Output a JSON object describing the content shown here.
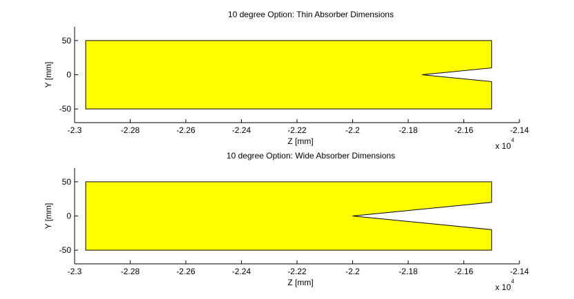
{
  "chart_data": [
    {
      "type": "area",
      "title": "10 degree Option: Thin Absorber Dimensions",
      "xlabel": "Z [mm]",
      "ylabel": "Y [mm]",
      "xlim": [
        -23000,
        -21400
      ],
      "ylim": [
        -70,
        70
      ],
      "x_ticks": [
        -23000,
        -22800,
        -22600,
        -22400,
        -22200,
        -22000,
        -21800,
        -21600,
        -21400
      ],
      "x_tick_labels": [
        "-2.3",
        "-2.28",
        "-2.26",
        "-2.24",
        "-2.22",
        "-2.2",
        "-2.18",
        "-2.16",
        "-2.14"
      ],
      "x_scale_base": "x 10",
      "x_scale_exp": "4",
      "y_ticks": [
        50,
        0,
        -50
      ],
      "y_tick_labels": [
        "50",
        "0",
        "-50"
      ],
      "grid": false,
      "fill_color": "#ffff00",
      "edge_color": "#000000",
      "polygon": {
        "x": [
          -22960,
          -21500,
          -21500,
          -21750,
          -21500,
          -21500,
          -22960
        ],
        "y": [
          50,
          50,
          10,
          0,
          -10,
          -50,
          -50
        ]
      }
    },
    {
      "type": "area",
      "title": "10 degree Option: Wide Absorber Dimensions",
      "xlabel": "Z [mm]",
      "ylabel": "Y [mm]",
      "xlim": [
        -23000,
        -21400
      ],
      "ylim": [
        -70,
        70
      ],
      "x_ticks": [
        -23000,
        -22800,
        -22600,
        -22400,
        -22200,
        -22000,
        -21800,
        -21600,
        -21400
      ],
      "x_tick_labels": [
        "-2.3",
        "-2.28",
        "-2.26",
        "-2.24",
        "-2.22",
        "-2.2",
        "-2.18",
        "-2.16",
        "-2.14"
      ],
      "x_scale_base": "x 10",
      "x_scale_exp": "4",
      "y_ticks": [
        50,
        0,
        -50
      ],
      "y_tick_labels": [
        "50",
        "0",
        "-50"
      ],
      "grid": false,
      "fill_color": "#ffff00",
      "edge_color": "#000000",
      "polygon": {
        "x": [
          -22960,
          -21500,
          -21500,
          -22000,
          -21500,
          -21500,
          -22960
        ],
        "y": [
          50,
          50,
          20,
          0,
          -20,
          -50,
          -50
        ]
      }
    }
  ]
}
